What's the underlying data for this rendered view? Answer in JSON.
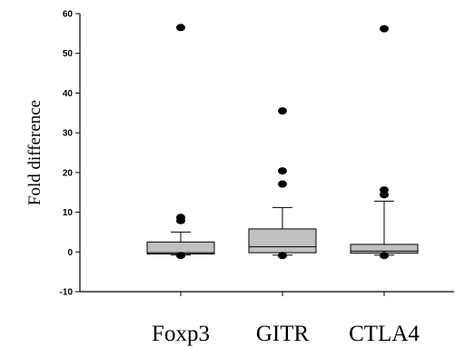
{
  "chart_data": {
    "type": "box",
    "ylabel": "Fold difference",
    "ylim": [
      -10,
      60
    ],
    "yticks": [
      -10,
      0,
      10,
      20,
      30,
      40,
      50,
      60
    ],
    "categories": [
      "Foxp3",
      "GITR",
      "CTLA4"
    ],
    "box_color": "#c0c0c0",
    "boxes": [
      {
        "category": "Foxp3",
        "whisker_low": -0.8,
        "q1": -0.5,
        "median": -0.2,
        "q3": 2.5,
        "whisker_high": 5.0,
        "outliers": [
          56.5,
          8.7,
          7.9,
          -0.9
        ]
      },
      {
        "category": "GITR",
        "whisker_low": -0.8,
        "q1": -0.2,
        "median": 1.3,
        "q3": 5.8,
        "whisker_high": 11.2,
        "outliers": [
          35.5,
          20.4,
          17.1,
          -0.9
        ]
      },
      {
        "category": "CTLA4",
        "whisker_low": -0.8,
        "q1": -0.3,
        "median": 0.2,
        "q3": 1.9,
        "whisker_high": 12.8,
        "outliers": [
          56.2,
          15.6,
          14.4,
          -0.9
        ]
      }
    ]
  }
}
